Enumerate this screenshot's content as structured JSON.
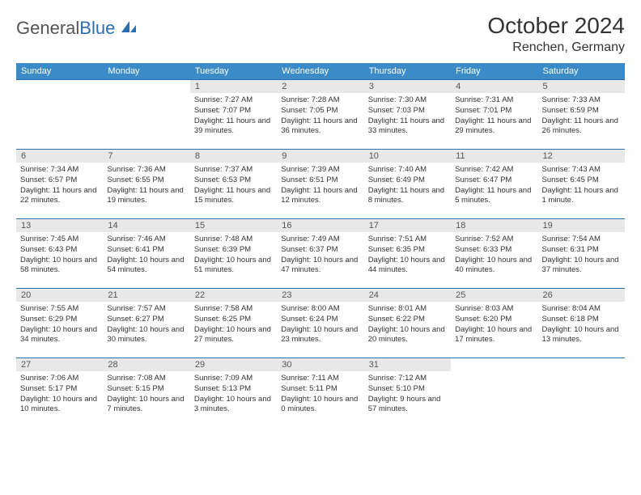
{
  "brand": {
    "word1": "General",
    "word2": "Blue"
  },
  "title": "October 2024",
  "location": "Renchen, Germany",
  "colors": {
    "header_bg": "#3b8bc9",
    "header_text": "#ffffff",
    "border": "#2c6fb0",
    "daynum_bg": "#e8e8e8",
    "text": "#333333"
  },
  "day_names": [
    "Sunday",
    "Monday",
    "Tuesday",
    "Wednesday",
    "Thursday",
    "Friday",
    "Saturday"
  ],
  "weeks": [
    [
      null,
      null,
      {
        "n": "1",
        "sr": "Sunrise: 7:27 AM",
        "ss": "Sunset: 7:07 PM",
        "dl": "Daylight: 11 hours and 39 minutes."
      },
      {
        "n": "2",
        "sr": "Sunrise: 7:28 AM",
        "ss": "Sunset: 7:05 PM",
        "dl": "Daylight: 11 hours and 36 minutes."
      },
      {
        "n": "3",
        "sr": "Sunrise: 7:30 AM",
        "ss": "Sunset: 7:03 PM",
        "dl": "Daylight: 11 hours and 33 minutes."
      },
      {
        "n": "4",
        "sr": "Sunrise: 7:31 AM",
        "ss": "Sunset: 7:01 PM",
        "dl": "Daylight: 11 hours and 29 minutes."
      },
      {
        "n": "5",
        "sr": "Sunrise: 7:33 AM",
        "ss": "Sunset: 6:59 PM",
        "dl": "Daylight: 11 hours and 26 minutes."
      }
    ],
    [
      {
        "n": "6",
        "sr": "Sunrise: 7:34 AM",
        "ss": "Sunset: 6:57 PM",
        "dl": "Daylight: 11 hours and 22 minutes."
      },
      {
        "n": "7",
        "sr": "Sunrise: 7:36 AM",
        "ss": "Sunset: 6:55 PM",
        "dl": "Daylight: 11 hours and 19 minutes."
      },
      {
        "n": "8",
        "sr": "Sunrise: 7:37 AM",
        "ss": "Sunset: 6:53 PM",
        "dl": "Daylight: 11 hours and 15 minutes."
      },
      {
        "n": "9",
        "sr": "Sunrise: 7:39 AM",
        "ss": "Sunset: 6:51 PM",
        "dl": "Daylight: 11 hours and 12 minutes."
      },
      {
        "n": "10",
        "sr": "Sunrise: 7:40 AM",
        "ss": "Sunset: 6:49 PM",
        "dl": "Daylight: 11 hours and 8 minutes."
      },
      {
        "n": "11",
        "sr": "Sunrise: 7:42 AM",
        "ss": "Sunset: 6:47 PM",
        "dl": "Daylight: 11 hours and 5 minutes."
      },
      {
        "n": "12",
        "sr": "Sunrise: 7:43 AM",
        "ss": "Sunset: 6:45 PM",
        "dl": "Daylight: 11 hours and 1 minute."
      }
    ],
    [
      {
        "n": "13",
        "sr": "Sunrise: 7:45 AM",
        "ss": "Sunset: 6:43 PM",
        "dl": "Daylight: 10 hours and 58 minutes."
      },
      {
        "n": "14",
        "sr": "Sunrise: 7:46 AM",
        "ss": "Sunset: 6:41 PM",
        "dl": "Daylight: 10 hours and 54 minutes."
      },
      {
        "n": "15",
        "sr": "Sunrise: 7:48 AM",
        "ss": "Sunset: 6:39 PM",
        "dl": "Daylight: 10 hours and 51 minutes."
      },
      {
        "n": "16",
        "sr": "Sunrise: 7:49 AM",
        "ss": "Sunset: 6:37 PM",
        "dl": "Daylight: 10 hours and 47 minutes."
      },
      {
        "n": "17",
        "sr": "Sunrise: 7:51 AM",
        "ss": "Sunset: 6:35 PM",
        "dl": "Daylight: 10 hours and 44 minutes."
      },
      {
        "n": "18",
        "sr": "Sunrise: 7:52 AM",
        "ss": "Sunset: 6:33 PM",
        "dl": "Daylight: 10 hours and 40 minutes."
      },
      {
        "n": "19",
        "sr": "Sunrise: 7:54 AM",
        "ss": "Sunset: 6:31 PM",
        "dl": "Daylight: 10 hours and 37 minutes."
      }
    ],
    [
      {
        "n": "20",
        "sr": "Sunrise: 7:55 AM",
        "ss": "Sunset: 6:29 PM",
        "dl": "Daylight: 10 hours and 34 minutes."
      },
      {
        "n": "21",
        "sr": "Sunrise: 7:57 AM",
        "ss": "Sunset: 6:27 PM",
        "dl": "Daylight: 10 hours and 30 minutes."
      },
      {
        "n": "22",
        "sr": "Sunrise: 7:58 AM",
        "ss": "Sunset: 6:25 PM",
        "dl": "Daylight: 10 hours and 27 minutes."
      },
      {
        "n": "23",
        "sr": "Sunrise: 8:00 AM",
        "ss": "Sunset: 6:24 PM",
        "dl": "Daylight: 10 hours and 23 minutes."
      },
      {
        "n": "24",
        "sr": "Sunrise: 8:01 AM",
        "ss": "Sunset: 6:22 PM",
        "dl": "Daylight: 10 hours and 20 minutes."
      },
      {
        "n": "25",
        "sr": "Sunrise: 8:03 AM",
        "ss": "Sunset: 6:20 PM",
        "dl": "Daylight: 10 hours and 17 minutes."
      },
      {
        "n": "26",
        "sr": "Sunrise: 8:04 AM",
        "ss": "Sunset: 6:18 PM",
        "dl": "Daylight: 10 hours and 13 minutes."
      }
    ],
    [
      {
        "n": "27",
        "sr": "Sunrise: 7:06 AM",
        "ss": "Sunset: 5:17 PM",
        "dl": "Daylight: 10 hours and 10 minutes."
      },
      {
        "n": "28",
        "sr": "Sunrise: 7:08 AM",
        "ss": "Sunset: 5:15 PM",
        "dl": "Daylight: 10 hours and 7 minutes."
      },
      {
        "n": "29",
        "sr": "Sunrise: 7:09 AM",
        "ss": "Sunset: 5:13 PM",
        "dl": "Daylight: 10 hours and 3 minutes."
      },
      {
        "n": "30",
        "sr": "Sunrise: 7:11 AM",
        "ss": "Sunset: 5:11 PM",
        "dl": "Daylight: 10 hours and 0 minutes."
      },
      {
        "n": "31",
        "sr": "Sunrise: 7:12 AM",
        "ss": "Sunset: 5:10 PM",
        "dl": "Daylight: 9 hours and 57 minutes."
      },
      null,
      null
    ]
  ]
}
